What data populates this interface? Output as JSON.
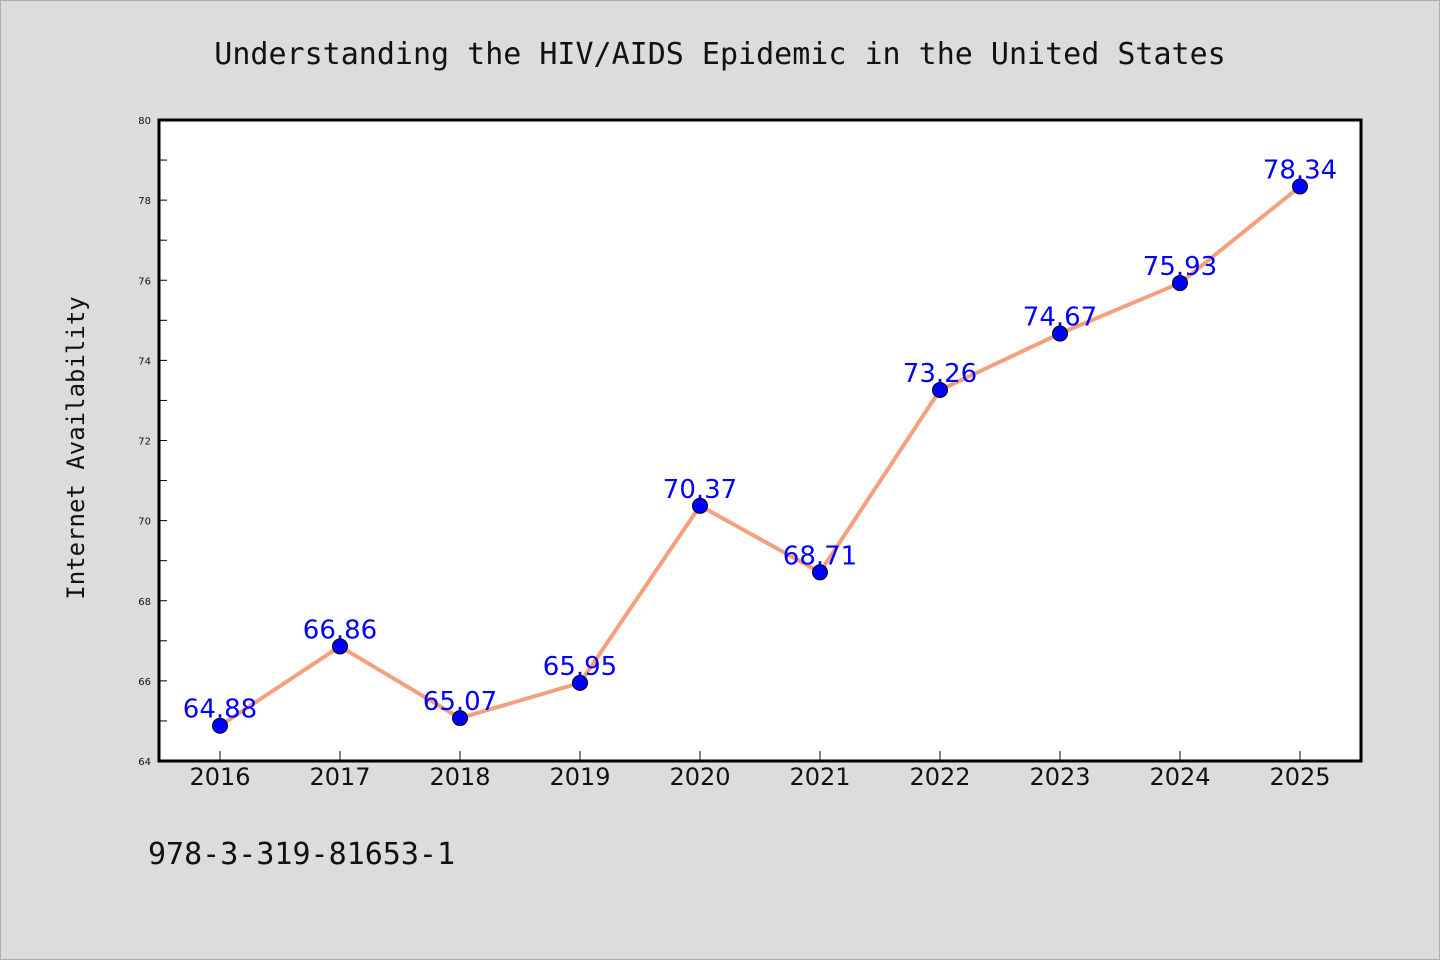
{
  "chart_data": {
    "type": "line",
    "title": "Understanding the HIV/AIDS Epidemic in the United States",
    "xlabel": "",
    "ylabel": "Internet Availability",
    "categories": [
      "2016",
      "2017",
      "2018",
      "2019",
      "2020",
      "2021",
      "2022",
      "2023",
      "2024",
      "2025"
    ],
    "values": [
      64.88,
      66.86,
      65.07,
      65.95,
      70.37,
      68.71,
      73.26,
      74.67,
      75.93,
      78.34
    ],
    "data_labels": [
      "64.88",
      "66.86",
      "65.07",
      "65.95",
      "70.37",
      "68.71",
      "73.26",
      "74.67",
      "75.93",
      "78.34"
    ],
    "ylim": [
      64,
      80
    ],
    "yticks": [
      "64",
      "66",
      "68",
      "70",
      "72",
      "74",
      "76",
      "78",
      "80"
    ],
    "grid": false,
    "legend": "none",
    "colors": {
      "line": "#f4a07c",
      "marker": "#0000ff",
      "data_label": "#0000ff",
      "background": "#dcdcdc",
      "plot_background": "#ffffff"
    }
  },
  "footer": {
    "isbn": "978-3-319-81653-1"
  }
}
